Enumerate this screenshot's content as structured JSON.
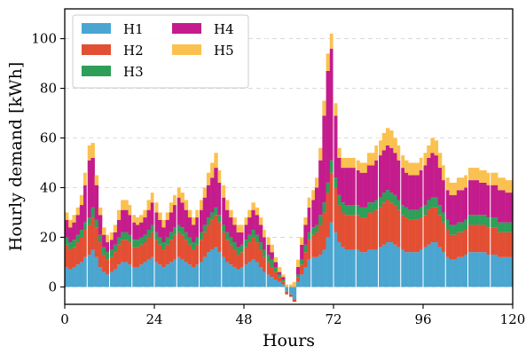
{
  "chart_data": {
    "type": "bar",
    "stacked": true,
    "xlabel": "Hours",
    "ylabel": "Hourly demand [kWh]",
    "xlim": [
      0,
      120
    ],
    "ylim": [
      -7,
      112
    ],
    "xticks": [
      0,
      24,
      48,
      72,
      96,
      120
    ],
    "yticks": [
      0,
      20,
      40,
      60,
      80,
      100
    ],
    "grid": true,
    "legend_position": "top-left",
    "legend_columns": 2,
    "series": [
      {
        "name": "H1",
        "color": "#4AA6D0",
        "values": [
          8,
          7,
          8,
          9,
          10,
          12,
          13,
          15,
          12,
          8,
          6,
          5,
          6,
          7,
          9,
          10,
          10,
          9,
          8,
          8,
          9,
          10,
          11,
          12,
          10,
          9,
          8,
          9,
          10,
          11,
          12,
          11,
          10,
          9,
          8,
          9,
          10,
          12,
          14,
          15,
          16,
          14,
          12,
          10,
          9,
          8,
          7,
          8,
          9,
          10,
          11,
          10,
          8,
          6,
          5,
          4,
          3,
          2,
          1,
          -2,
          -3,
          -5,
          2,
          5,
          8,
          11,
          12,
          12,
          13,
          15,
          20,
          26,
          22,
          18,
          16,
          15,
          15,
          15,
          15,
          14,
          14,
          15,
          15,
          15,
          16,
          17,
          18,
          18,
          17,
          16,
          15,
          14,
          14,
          14,
          14,
          15,
          16,
          17,
          18,
          18,
          16,
          14,
          12,
          11,
          11,
          12,
          12,
          13,
          14,
          14,
          14,
          14,
          14,
          13,
          13,
          13,
          12,
          12,
          12,
          12
        ]
      },
      {
        "name": "H2",
        "color": "#E34F33",
        "values": [
          9,
          8,
          8,
          9,
          10,
          11,
          12,
          13,
          12,
          10,
          7,
          6,
          6,
          7,
          8,
          9,
          9,
          9,
          8,
          8,
          8,
          8,
          9,
          10,
          9,
          8,
          7,
          8,
          9,
          10,
          10,
          10,
          9,
          8,
          7,
          8,
          9,
          10,
          11,
          12,
          13,
          12,
          10,
          9,
          8,
          7,
          6,
          6,
          7,
          8,
          9,
          8,
          7,
          6,
          5,
          4,
          3,
          2,
          1,
          -1,
          -1,
          -1,
          2,
          4,
          6,
          8,
          9,
          10,
          12,
          15,
          18,
          20,
          18,
          15,
          14,
          14,
          14,
          14,
          14,
          14,
          14,
          15,
          15,
          16,
          16,
          17,
          17,
          16,
          16,
          15,
          14,
          14,
          13,
          13,
          13,
          13,
          13,
          14,
          14,
          14,
          13,
          12,
          11,
          10,
          10,
          10,
          10,
          10,
          11,
          11,
          11,
          11,
          11,
          11,
          11,
          11,
          10,
          10,
          10,
          10
        ]
      },
      {
        "name": "H3",
        "color": "#2E9E58",
        "values": [
          3,
          3,
          3,
          3,
          3,
          3,
          3,
          4,
          3,
          3,
          3,
          3,
          3,
          3,
          3,
          3,
          3,
          3,
          3,
          3,
          3,
          3,
          3,
          3,
          3,
          3,
          3,
          3,
          3,
          3,
          3,
          3,
          3,
          3,
          3,
          3,
          3,
          3,
          3,
          3,
          3,
          3,
          3,
          3,
          3,
          3,
          3,
          3,
          3,
          3,
          3,
          3,
          3,
          3,
          3,
          3,
          2,
          1,
          1,
          0,
          0,
          0,
          1,
          2,
          3,
          3,
          3,
          3,
          4,
          4,
          4,
          5,
          4,
          4,
          4,
          4,
          4,
          4,
          4,
          4,
          4,
          4,
          4,
          4,
          4,
          4,
          4,
          4,
          4,
          4,
          4,
          4,
          4,
          4,
          4,
          4,
          4,
          4,
          4,
          4,
          4,
          4,
          4,
          4,
          4,
          4,
          4,
          4,
          4,
          4,
          4,
          4,
          4,
          4,
          4,
          4,
          4,
          4,
          4,
          4
        ]
      },
      {
        "name": "H4",
        "color": "#C41C8C",
        "values": [
          7,
          6,
          7,
          8,
          10,
          15,
          23,
          20,
          14,
          8,
          5,
          4,
          4,
          5,
          7,
          9,
          9,
          8,
          7,
          6,
          6,
          7,
          8,
          9,
          8,
          7,
          6,
          7,
          8,
          9,
          11,
          10,
          9,
          8,
          7,
          8,
          9,
          11,
          13,
          14,
          16,
          13,
          11,
          9,
          8,
          7,
          6,
          5,
          6,
          7,
          8,
          8,
          7,
          5,
          4,
          3,
          2,
          1,
          1,
          0,
          0,
          0,
          3,
          6,
          8,
          10,
          11,
          15,
          22,
          35,
          45,
          45,
          25,
          15,
          14,
          15,
          15,
          15,
          14,
          14,
          14,
          15,
          15,
          16,
          17,
          17,
          18,
          18,
          17,
          16,
          15,
          14,
          14,
          14,
          14,
          15,
          16,
          17,
          18,
          17,
          15,
          13,
          12,
          12,
          12,
          13,
          13,
          13,
          14,
          14,
          14,
          13,
          13,
          13,
          13,
          13,
          13,
          13,
          12,
          12
        ]
      },
      {
        "name": "H5",
        "color": "#FBC150",
        "values": [
          3,
          3,
          3,
          3,
          4,
          5,
          6,
          6,
          4,
          3,
          3,
          3,
          3,
          3,
          4,
          4,
          4,
          4,
          3,
          3,
          3,
          3,
          4,
          4,
          4,
          3,
          3,
          3,
          4,
          4,
          4,
          4,
          4,
          3,
          3,
          3,
          4,
          4,
          5,
          6,
          6,
          5,
          5,
          4,
          3,
          3,
          3,
          3,
          3,
          3,
          3,
          3,
          3,
          3,
          3,
          3,
          2,
          2,
          1,
          1,
          1,
          2,
          3,
          3,
          3,
          4,
          4,
          4,
          5,
          6,
          7,
          6,
          5,
          4,
          4,
          4,
          4,
          4,
          4,
          4,
          4,
          5,
          5,
          6,
          6,
          7,
          7,
          7,
          6,
          6,
          5,
          5,
          5,
          5,
          5,
          5,
          5,
          5,
          6,
          6,
          6,
          6,
          5,
          5,
          5,
          5,
          5,
          5,
          5,
          5,
          5,
          5,
          5,
          5,
          5,
          5,
          5,
          5,
          5,
          5
        ]
      }
    ]
  }
}
